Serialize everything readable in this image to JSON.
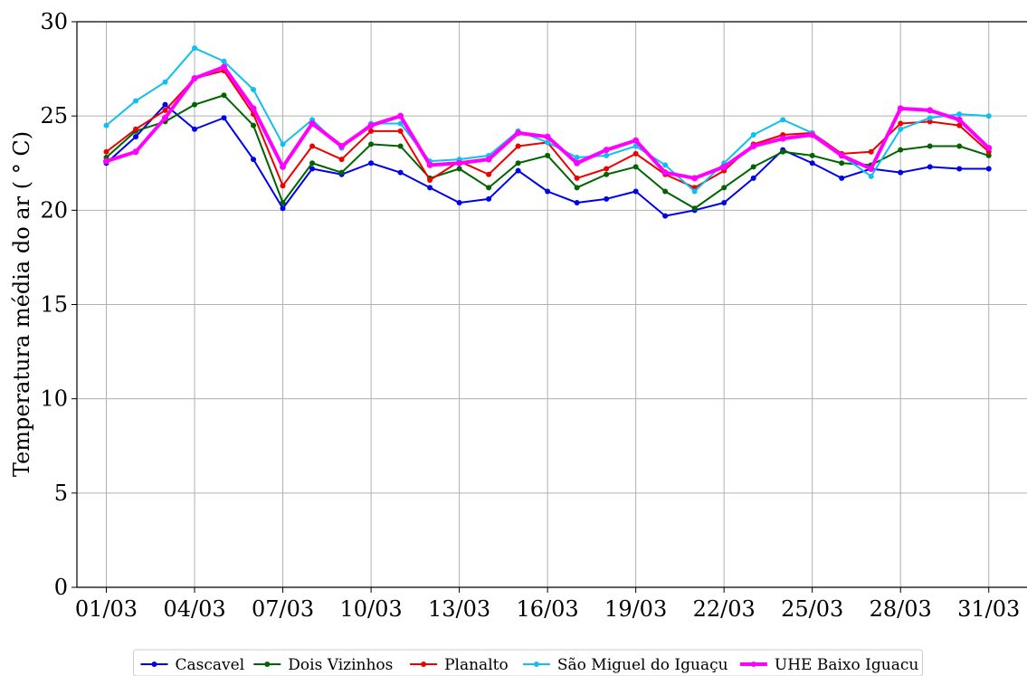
{
  "chart_data": {
    "type": "line",
    "ylabel": "Temperatura média do ar ( ° C)",
    "xlabel": "",
    "ylim": [
      0,
      30
    ],
    "yticks": [
      "0",
      "5",
      "10",
      "15",
      "20",
      "25",
      "30"
    ],
    "x": [
      1,
      2,
      3,
      4,
      5,
      6,
      7,
      8,
      9,
      10,
      11,
      12,
      13,
      14,
      15,
      16,
      17,
      18,
      19,
      20,
      21,
      22,
      23,
      24,
      25,
      26,
      27,
      28,
      29,
      30,
      31
    ],
    "xticks": [
      {
        "x": 1,
        "label": "01/03"
      },
      {
        "x": 4,
        "label": "04/03"
      },
      {
        "x": 7,
        "label": "07/03"
      },
      {
        "x": 10,
        "label": "10/03"
      },
      {
        "x": 13,
        "label": "13/03"
      },
      {
        "x": 16,
        "label": "16/03"
      },
      {
        "x": 19,
        "label": "19/03"
      },
      {
        "x": 22,
        "label": "22/03"
      },
      {
        "x": 25,
        "label": "25/03"
      },
      {
        "x": 28,
        "label": "28/03"
      },
      {
        "x": 31,
        "label": "31/03"
      }
    ],
    "grid": true,
    "legend_position": "bottom",
    "series": [
      {
        "name": "Cascavel",
        "color": "#0000ee",
        "values": [
          22.5,
          23.9,
          25.6,
          24.3,
          24.9,
          22.7,
          20.1,
          22.2,
          21.9,
          22.5,
          22.0,
          21.2,
          20.4,
          20.6,
          22.1,
          21.0,
          20.4,
          20.6,
          21.0,
          19.7,
          20.0,
          20.4,
          21.7,
          23.2,
          22.5,
          21.7,
          22.2,
          22.0,
          22.3,
          22.2,
          22.2
        ]
      },
      {
        "name": "Dois Vizinhos",
        "color": "#006400",
        "values": [
          22.8,
          24.2,
          24.7,
          25.6,
          26.1,
          24.5,
          20.4,
          22.5,
          22.0,
          23.5,
          23.4,
          21.7,
          22.2,
          21.2,
          22.5,
          22.9,
          21.2,
          21.9,
          22.3,
          21.0,
          20.1,
          21.2,
          22.3,
          23.1,
          22.9,
          22.5,
          22.4,
          23.2,
          23.4,
          23.4,
          22.9
        ]
      },
      {
        "name": "Planalto",
        "color": "#ee0000",
        "values": [
          23.1,
          24.3,
          25.3,
          27.0,
          27.4,
          25.1,
          21.3,
          23.4,
          22.7,
          24.2,
          24.2,
          21.6,
          22.6,
          21.9,
          23.4,
          23.6,
          21.7,
          22.2,
          23.0,
          21.9,
          21.2,
          22.1,
          23.5,
          24.0,
          24.1,
          23.0,
          23.1,
          24.6,
          24.7,
          24.5,
          23.1
        ]
      },
      {
        "name": "São Miguel do Iguaçu",
        "color": "#10bfef",
        "values": [
          24.5,
          25.8,
          26.8,
          28.6,
          27.9,
          26.4,
          23.5,
          24.8,
          23.3,
          24.6,
          24.6,
          22.6,
          22.7,
          22.9,
          24.2,
          23.6,
          22.8,
          22.9,
          23.4,
          22.4,
          21.0,
          22.5,
          24.0,
          24.8,
          24.1,
          22.9,
          21.8,
          24.3,
          24.9,
          25.1,
          25.0
        ]
      },
      {
        "name": "UHE Baixo Iguacu",
        "color": "#ff00ff",
        "values": [
          22.6,
          23.1,
          24.9,
          27.0,
          27.6,
          25.4,
          22.3,
          24.6,
          23.4,
          24.5,
          25.0,
          22.4,
          22.5,
          22.7,
          24.1,
          23.9,
          22.5,
          23.2,
          23.7,
          22.0,
          21.7,
          22.3,
          23.4,
          23.8,
          24.0,
          22.9,
          22.2,
          25.4,
          25.3,
          24.8,
          23.3
        ]
      }
    ]
  }
}
